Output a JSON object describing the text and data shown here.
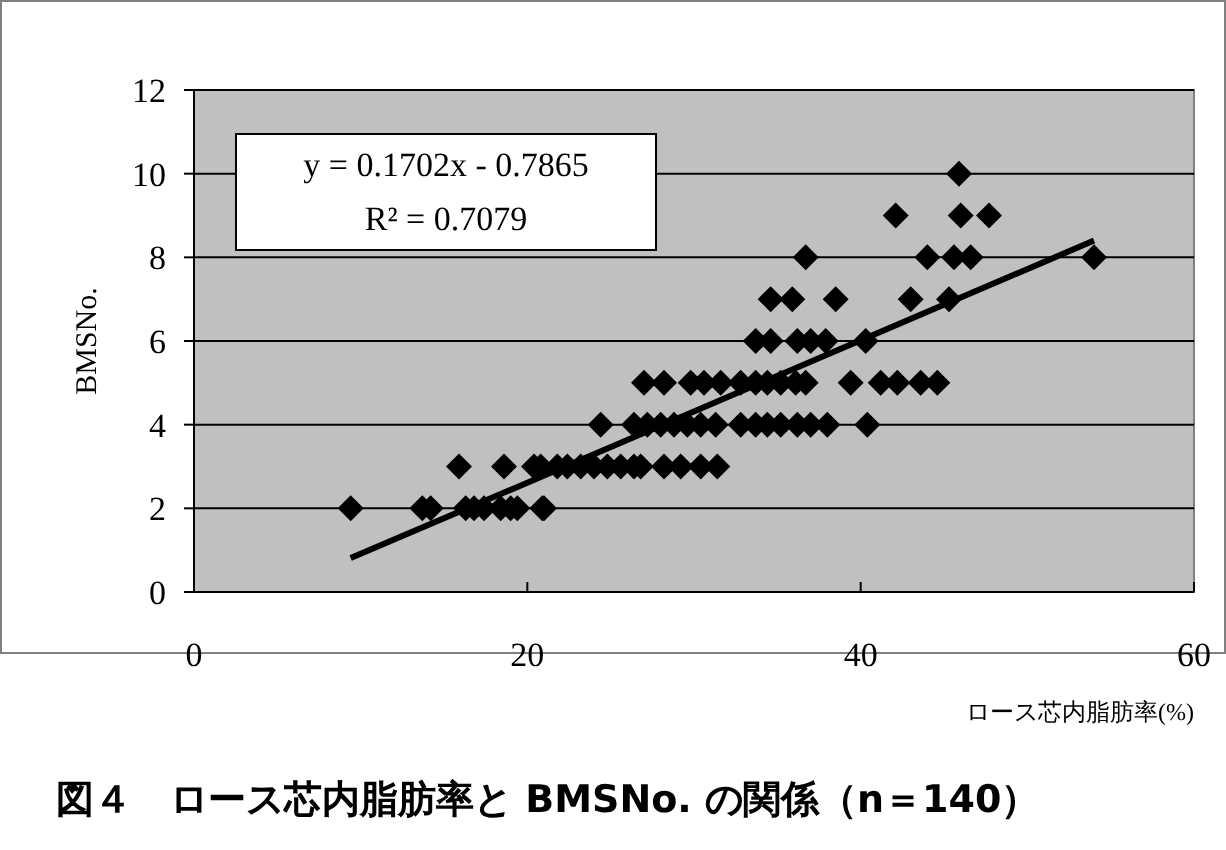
{
  "chart_data": {
    "type": "scatter",
    "title": "図４　ロース芯内脂肪率と BMSNo. の関係（n＝140）",
    "xlabel": "ロース芯内脂肪率(%)",
    "ylabel": "BMSNo.",
    "xlim": [
      0,
      60
    ],
    "ylim": [
      0,
      12
    ],
    "xticks": [
      0,
      20,
      40,
      60
    ],
    "yticks": [
      0,
      2,
      4,
      6,
      8,
      10,
      12
    ],
    "grid": "y",
    "marker": "diamond",
    "annotations": [
      "y = 0.1702x - 0.7865",
      "R² = 0.7079"
    ],
    "series": [
      {
        "color": "#000000",
        "x": [
          9.4,
          13.7,
          14.2,
          16.3,
          16.8,
          17.4,
          18.4,
          19.0,
          19.4,
          20.9,
          21.0,
          15.9,
          18.6,
          20.4,
          20.8,
          21.8,
          22.4,
          23.2,
          24.0,
          24.8,
          25.6,
          26.4,
          26.8,
          28.2,
          29.2,
          30.4,
          31.4,
          24.4,
          26.4,
          27.2,
          28.0,
          28.8,
          29.6,
          30.4,
          31.3,
          32.8,
          33.7,
          34.4,
          35.2,
          36.2,
          37.0,
          38.0,
          40.4,
          27.0,
          28.2,
          29.8,
          30.6,
          31.6,
          32.8,
          33.7,
          34.4,
          35.2,
          36.1,
          36.7,
          39.4,
          41.2,
          42.2,
          43.6,
          44.6,
          33.7,
          34.6,
          36.2,
          37.0,
          37.9,
          40.3,
          34.6,
          35.9,
          38.5,
          43.0,
          45.3,
          36.7,
          44.0,
          45.6,
          46.6,
          54.0,
          42.1,
          46.0,
          47.7,
          45.9
        ],
        "values": [
          2,
          2,
          2,
          2,
          2,
          2,
          2,
          2,
          2,
          2,
          2,
          3,
          3,
          3,
          3,
          3,
          3,
          3,
          3,
          3,
          3,
          3,
          3,
          3,
          3,
          3,
          3,
          4,
          4,
          4,
          4,
          4,
          4,
          4,
          4,
          4,
          4,
          4,
          4,
          4,
          4,
          4,
          4,
          5,
          5,
          5,
          5,
          5,
          5,
          5,
          5,
          5,
          5,
          5,
          5,
          5,
          5,
          5,
          5,
          6,
          6,
          6,
          6,
          6,
          6,
          7,
          7,
          7,
          7,
          7,
          8,
          8,
          8,
          8,
          8,
          9,
          9,
          9,
          10
        ]
      },
      {
        "type": "line",
        "color": "#000000",
        "x": [
          9.4,
          54.0
        ],
        "values": [
          0.81,
          8.4
        ],
        "marker": "none"
      }
    ]
  }
}
